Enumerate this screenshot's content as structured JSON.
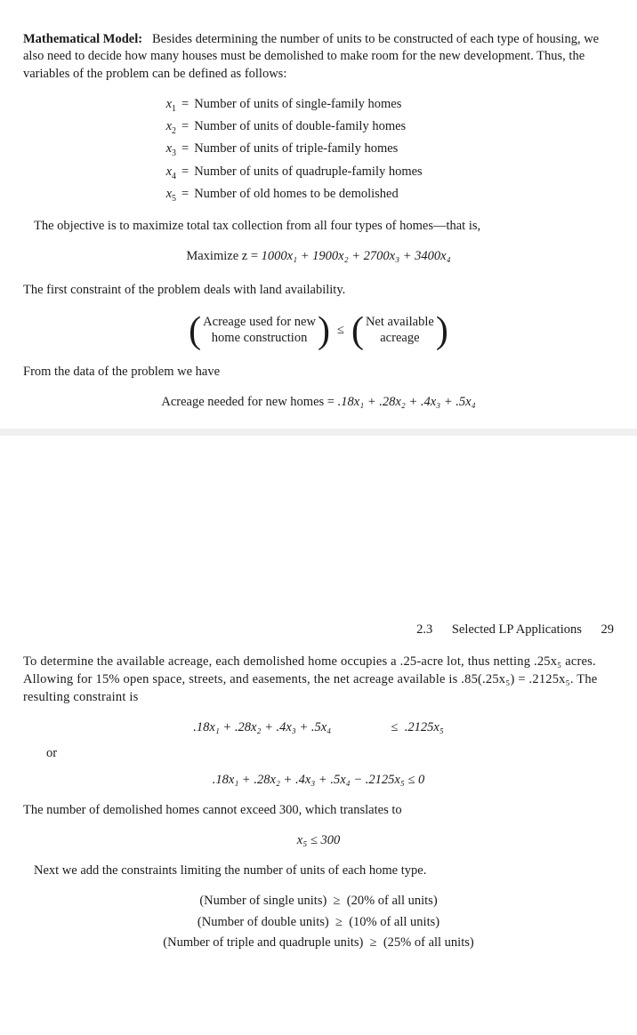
{
  "page1": {
    "heading": "Mathematical Model:",
    "intro": "Besides determining the number of units to be constructed of each type of housing, we also need to decide how many houses must be demolished to make room for the new development. Thus, the variables of the problem can be defined as follows:",
    "vars": [
      {
        "sym": "x",
        "sub": "1",
        "desc": "Number of units of single-family homes"
      },
      {
        "sym": "x",
        "sub": "2",
        "desc": "Number of units of double-family homes"
      },
      {
        "sym": "x",
        "sub": "3",
        "desc": "Number of units of triple-family homes"
      },
      {
        "sym": "x",
        "sub": "4",
        "desc": "Number of units of quadruple-family homes"
      },
      {
        "sym": "x",
        "sub": "5",
        "desc": "Number of old homes to be demolished"
      }
    ],
    "objective_text": "The objective is to maximize total tax collection from all four types of homes—that is,",
    "objective_eq_prefix": "Maximize z = ",
    "objective_eq_terms": "1000x₁ + 1900x₂ + 2700x₃ + 3400x₄",
    "constraint_intro": "The first constraint of the problem deals with land availability.",
    "paren_left_top": "Acreage used for new",
    "paren_left_bot": "home construction",
    "paren_rel": "≤",
    "paren_right_top": "Net available",
    "paren_right_bot": "acreage",
    "from_data": "From the data of the problem we have",
    "acreage_eq_prefix": "Acreage needed for new homes = ",
    "acreage_eq_terms": ".18x₁ + .28x₂ + .4x₃ + .5x₄"
  },
  "page2": {
    "section": "2.3",
    "section_title": "Selected LP Applications",
    "page_no": "29",
    "para": "To determine the available acreage, each demolished home occupies a .25-acre lot, thus netting .25x₅ acres. Allowing for 15% open space, streets, and easements, the net acreage available is .85(.25x₅) = .2125x₅. The resulting constraint is",
    "ineq1_left": ".18x₁ + .28x₂ + .4x₃ + .5x₄",
    "ineq1_rel": "≤",
    "ineq1_right": ".2125x₅",
    "or": "or",
    "ineq2": ".18x₁ + .28x₂ + .4x₃ + .5x₄ − .2125x₅ ≤ 0",
    "demolish_text": "The number of demolished homes cannot exceed 300, which translates to",
    "demolish_eq": "x₅ ≤ 300",
    "next_text": "Next we add the constraints limiting the number of units of each home type.",
    "unit_constraints": [
      {
        "left": "(Number of single units)",
        "rel": "≥",
        "right": "(20% of all units)"
      },
      {
        "left": "(Number of double units)",
        "rel": "≥",
        "right": "(10% of all units)"
      },
      {
        "left": "(Number of triple and quadruple units)",
        "rel": "≥",
        "right": "(25% of all units)"
      }
    ]
  }
}
